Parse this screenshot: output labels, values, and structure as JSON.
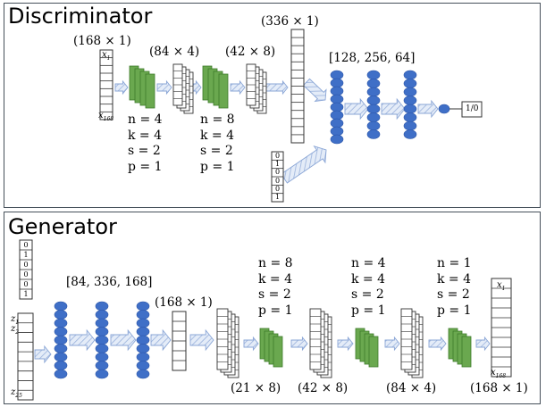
{
  "discriminator": {
    "title": "Discriminator",
    "input_dim": "(168 × 1)",
    "input_top": "x",
    "input_top_sub": "1",
    "input_bottom": "x",
    "input_bottom_sub": "168",
    "conv1_out_dim": "(84 × 4)",
    "conv2_out_dim": "(42 × 8)",
    "flat_dim": "(336 × 1)",
    "dense_layers": "[128, 256, 64]",
    "conv1_params": [
      "n = 4",
      "k = 4",
      "s = 2",
      "p = 1"
    ],
    "conv2_params": [
      "n = 8",
      "k = 4",
      "s = 2",
      "p = 1"
    ],
    "condition_vector": [
      "0",
      "1",
      "0",
      "0",
      "0",
      "1"
    ],
    "output_label": "1/0"
  },
  "generator": {
    "title": "Generator",
    "condition_vector": [
      "0",
      "1",
      "0",
      "0",
      "0",
      "1"
    ],
    "noise_top": "z",
    "noise_top_sub1": "1",
    "noise_top2": "z",
    "noise_top_sub2": "2",
    "noise_bottom": "z",
    "noise_bottom_sub": "25",
    "dense_layers": "[84, 336, 168]",
    "flat_dim": "(168 × 1)",
    "reshape_dim": "(21 × 8)",
    "deconv1_out_dim": "(42 × 8)",
    "deconv2_out_dim": "(84 × 4)",
    "output_dim": "(168 × 1)",
    "output_top": "x",
    "output_top_sub": "1",
    "output_bottom": "x",
    "output_bottom_sub": "168",
    "deconv1_params": [
      "n = 8",
      "k = 4",
      "s = 2",
      "p = 1"
    ],
    "deconv2_params": [
      "n = 4",
      "k = 4",
      "s = 2",
      "p = 1"
    ],
    "deconv3_params": [
      "n = 1",
      "k = 4",
      "s = 2",
      "p = 1"
    ]
  },
  "colors": {
    "node": "#3f6fc7",
    "conv": "#6aa84f",
    "conv_dark": "#3d7a2a",
    "arrow_fill": "#dfe8f6",
    "arrow_stroke": "#8aa6d6",
    "border": "#46505a"
  }
}
